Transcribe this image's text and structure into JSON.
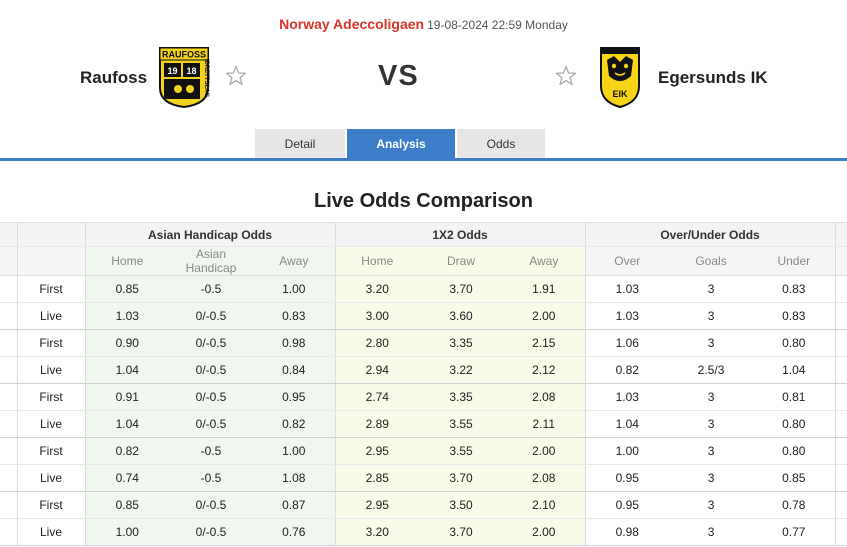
{
  "match": {
    "league": "Norway Adeccoligaen",
    "datetime": "19-08-2024 22:59 Monday",
    "home_team": "Raufoss",
    "away_team": "Egersunds IK",
    "vs": "VS",
    "home_logo_text_top": "RAUFOSS",
    "home_logo_numbers": [
      "19",
      "18"
    ],
    "home_logo_side_text": "IDRETTSLAG",
    "away_logo_text": "EIK"
  },
  "tabs": [
    {
      "label": "Detail",
      "active": false
    },
    {
      "label": "Analysis",
      "active": true
    },
    {
      "label": "Odds",
      "active": false
    }
  ],
  "section_title": "Live Odds Comparison",
  "table": {
    "groups": [
      "Asian Handicap Odds",
      "1X2 Odds",
      "Over/Under Odds"
    ],
    "subheaders": [
      "Home",
      "Asian Handicap",
      "Away",
      "Home",
      "Draw",
      "Away",
      "Over",
      "Goals",
      "Under"
    ],
    "rows": [
      {
        "type": "First",
        "ah": [
          "0.85",
          "-0.5",
          "1.00"
        ],
        "x12": [
          "3.20",
          "3.70",
          "1.91"
        ],
        "ou": [
          "1.03",
          "3",
          "0.83"
        ]
      },
      {
        "type": "Live",
        "ah": [
          "1.03",
          "0/-0.5",
          "0.83"
        ],
        "x12": [
          "3.00",
          "3.60",
          "2.00"
        ],
        "ou": [
          "1.03",
          "3",
          "0.83"
        ]
      },
      {
        "type": "First",
        "ah": [
          "0.90",
          "0/-0.5",
          "0.98"
        ],
        "x12": [
          "2.80",
          "3.35",
          "2.15"
        ],
        "ou": [
          "1.06",
          "3",
          "0.80"
        ]
      },
      {
        "type": "Live",
        "ah": [
          "1.04",
          "0/-0.5",
          "0.84"
        ],
        "x12": [
          "2.94",
          "3.22",
          "2.12"
        ],
        "ou": [
          "0.82",
          "2.5/3",
          "1.04"
        ]
      },
      {
        "type": "First",
        "ah": [
          "0.91",
          "0/-0.5",
          "0.95"
        ],
        "x12": [
          "2.74",
          "3.35",
          "2.08"
        ],
        "ou": [
          "1.03",
          "3",
          "0.81"
        ]
      },
      {
        "type": "Live",
        "ah": [
          "1.04",
          "0/-0.5",
          "0.82"
        ],
        "x12": [
          "2.89",
          "3.55",
          "2.11"
        ],
        "ou": [
          "1.04",
          "3",
          "0.80"
        ]
      },
      {
        "type": "First",
        "ah": [
          "0.82",
          "-0.5",
          "1.00"
        ],
        "x12": [
          "2.95",
          "3.55",
          "2.00"
        ],
        "ou": [
          "1.00",
          "3",
          "0.80"
        ]
      },
      {
        "type": "Live",
        "ah": [
          "0.74",
          "-0.5",
          "1.08"
        ],
        "x12": [
          "2.85",
          "3.70",
          "2.08"
        ],
        "ou": [
          "0.95",
          "3",
          "0.85"
        ]
      },
      {
        "type": "First",
        "ah": [
          "0.85",
          "0/-0.5",
          "0.87"
        ],
        "x12": [
          "2.95",
          "3.50",
          "2.10"
        ],
        "ou": [
          "0.95",
          "3",
          "0.78"
        ]
      },
      {
        "type": "Live",
        "ah": [
          "1.00",
          "0/-0.5",
          "0.76"
        ],
        "x12": [
          "3.20",
          "3.70",
          "2.00"
        ],
        "ou": [
          "0.98",
          "3",
          "0.77"
        ]
      }
    ]
  },
  "colors": {
    "accent": "#3c7cc9",
    "league": "#d9342b",
    "ah_bg": "#f0f7ee",
    "x12_bg": "#fafae8",
    "home_logo_yellow": "#f3d21f",
    "away_logo_yellow": "#f7d416"
  },
  "icons": [
    "favorite-star-icon",
    "home-team-logo",
    "away-team-logo"
  ]
}
